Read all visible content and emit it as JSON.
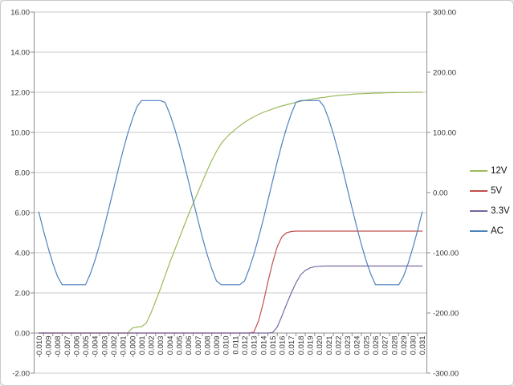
{
  "window": {
    "background": "#e9e9e9"
  },
  "chart": {
    "frame": {
      "background": "#ffffff",
      "border_color": "#c9c9c9"
    },
    "grid_color": "#c9c9c9",
    "axis_line_color": "#8c8c8c",
    "label_color": "#333333",
    "legend": {
      "position": "right",
      "items": [
        "12V",
        "5V",
        "3.3V",
        "AC"
      ]
    }
  },
  "chart_data": {
    "type": "line",
    "title": "",
    "grid": "horizontal",
    "legend_position": "right",
    "left_axis": {
      "min": -2,
      "max": 16,
      "step": 2,
      "tick_labels": [
        "16.00",
        "14.00",
        "12.00",
        "10.00",
        "8.00",
        "6.00",
        "4.00",
        "2.00",
        "0.00",
        "-2.00"
      ]
    },
    "right_axis": {
      "min": -300,
      "max": 300,
      "step": 100,
      "tick_labels": [
        "300.00",
        "200.00",
        "100.00",
        "0.00",
        "-100.00",
        "-200.00",
        "-300.00"
      ]
    },
    "x_axis": {
      "crosses_at": 0,
      "tick_labels": [
        "-0.010",
        "-0.009",
        "-0.008",
        "-0.007",
        "-0.006",
        "-0.005",
        "-0.004",
        "-0.003",
        "-0.002",
        "-0.001",
        "-0.000",
        "0.001",
        "0.002",
        "0.003",
        "0.004",
        "0.005",
        "0.006",
        "0.007",
        "0.008",
        "0.009",
        "0.010",
        "0.011",
        "0.012",
        "0.013",
        "0.014",
        "0.015",
        "0.016",
        "0.017",
        "0.018",
        "0.019",
        "0.020",
        "0.021",
        "0.022",
        "0.023",
        "0.024",
        "0.025",
        "0.026",
        "0.027",
        "0.028",
        "0.029",
        "0.030",
        "0.031"
      ]
    },
    "x": [
      -0.01,
      -0.0095,
      -0.009,
      -0.0085,
      -0.008,
      -0.0075,
      -0.007,
      -0.0065,
      -0.006,
      -0.0055,
      -0.005,
      -0.0045,
      -0.004,
      -0.0035,
      -0.003,
      -0.0025,
      -0.002,
      -0.0015,
      -0.001,
      -0.0005,
      0.0,
      0.0005,
      0.001,
      0.0015,
      0.002,
      0.0025,
      0.003,
      0.0035,
      0.004,
      0.0045,
      0.005,
      0.0055,
      0.006,
      0.0065,
      0.007,
      0.0075,
      0.008,
      0.0085,
      0.009,
      0.0095,
      0.01,
      0.0105,
      0.011,
      0.0115,
      0.012,
      0.0125,
      0.013,
      0.0135,
      0.014,
      0.0145,
      0.015,
      0.0155,
      0.016,
      0.0165,
      0.017,
      0.0175,
      0.018,
      0.0185,
      0.019,
      0.0195,
      0.02,
      0.0205,
      0.021,
      0.0215,
      0.022,
      0.0225,
      0.023,
      0.0235,
      0.024,
      0.0245,
      0.025,
      0.0255,
      0.026,
      0.0265,
      0.027,
      0.0275,
      0.028,
      0.0285,
      0.029,
      0.0295,
      0.03,
      0.0305,
      0.031
    ],
    "series": [
      {
        "name": "12V",
        "axis": "left",
        "color": "#9BBB59",
        "values": [
          0,
          0,
          0,
          0,
          0,
          0,
          0,
          0,
          0,
          0,
          0,
          0,
          0,
          0,
          0,
          0,
          0,
          0,
          0,
          0,
          0.25,
          0.3,
          0.32,
          0.5,
          1.0,
          1.6,
          2.2,
          2.85,
          3.5,
          4.1,
          4.7,
          5.3,
          5.9,
          6.45,
          7.0,
          7.55,
          8.1,
          8.6,
          9.05,
          9.45,
          9.72,
          9.95,
          10.15,
          10.33,
          10.5,
          10.65,
          10.78,
          10.9,
          11.0,
          11.09,
          11.17,
          11.25,
          11.32,
          11.38,
          11.44,
          11.5,
          11.55,
          11.6,
          11.64,
          11.68,
          11.72,
          11.75,
          11.78,
          11.81,
          11.84,
          11.86,
          11.88,
          11.9,
          11.92,
          11.93,
          11.94,
          11.95,
          11.96,
          11.96,
          11.97,
          11.98,
          11.98,
          11.99,
          11.99,
          11.99,
          12.0,
          12.0,
          12.0
        ]
      },
      {
        "name": "5V",
        "axis": "left",
        "color": "#C0504D",
        "values": [
          0,
          0,
          0,
          0,
          0,
          0,
          0,
          0,
          0,
          0,
          0,
          0,
          0,
          0,
          0,
          0,
          0,
          0,
          0,
          0,
          0,
          0,
          0,
          0,
          0,
          0,
          0,
          0,
          0,
          0,
          0,
          0,
          0,
          0,
          0,
          0,
          0,
          0,
          0,
          0,
          0,
          0,
          0,
          0,
          0,
          0,
          0.05,
          0.6,
          1.5,
          2.55,
          3.5,
          4.3,
          4.8,
          5.0,
          5.06,
          5.08,
          5.08,
          5.08,
          5.08,
          5.08,
          5.08,
          5.08,
          5.08,
          5.08,
          5.08,
          5.08,
          5.08,
          5.08,
          5.08,
          5.08,
          5.08,
          5.08,
          5.08,
          5.08,
          5.08,
          5.08,
          5.08,
          5.08,
          5.08,
          5.08,
          5.08,
          5.08,
          5.08
        ]
      },
      {
        "name": "3.3V",
        "axis": "left",
        "color": "#7865A0",
        "values": [
          0,
          0,
          0,
          0,
          0,
          0,
          0,
          0,
          0,
          0,
          0,
          0,
          0,
          0,
          0,
          0,
          0,
          0,
          0,
          0,
          0,
          0,
          0,
          0,
          0,
          0,
          0,
          0,
          0,
          0,
          0,
          0,
          0,
          0,
          0,
          0,
          0,
          0,
          0,
          0,
          0,
          0,
          0,
          0,
          0,
          0,
          0,
          0,
          0,
          0,
          0.02,
          0.3,
          0.85,
          1.45,
          2.0,
          2.5,
          2.9,
          3.12,
          3.25,
          3.31,
          3.33,
          3.34,
          3.34,
          3.34,
          3.34,
          3.34,
          3.34,
          3.34,
          3.34,
          3.34,
          3.34,
          3.34,
          3.34,
          3.34,
          3.34,
          3.34,
          3.34,
          3.34,
          3.34,
          3.34,
          3.34,
          3.34,
          3.34
        ]
      },
      {
        "name": "AC",
        "axis": "right",
        "color": "#4F81BD",
        "values": [
          -32.1,
          -63.1,
          -91.9,
          -117.6,
          -139.2,
          -153,
          -153,
          -153,
          -153,
          -153,
          -153,
          -135.2,
          -112.8,
          -86.5,
          -57.2,
          -25.9,
          6.3,
          38.6,
          69.3,
          97.5,
          122.3,
          142.9,
          153,
          153,
          153,
          153,
          153,
          149.8,
          131.2,
          107.9,
          80.9,
          50.9,
          19.3,
          -13.0,
          -44.8,
          -75.0,
          -102.7,
          -126.7,
          -146.6,
          -153,
          -153,
          -153,
          -153,
          -153,
          -146.6,
          -126.7,
          -102.7,
          -75.0,
          -44.8,
          -13.0,
          19.3,
          50.9,
          80.9,
          107.9,
          131.2,
          149.8,
          153,
          153,
          153,
          153,
          153,
          142.9,
          122.3,
          97.5,
          69.3,
          38.6,
          6.3,
          -25.9,
          -57.2,
          -86.5,
          -112.8,
          -135.2,
          -153,
          -153,
          -153,
          -153,
          -153,
          -153,
          -139.2,
          -117.6,
          -91.9,
          -63.1,
          -32.1
        ]
      }
    ]
  }
}
